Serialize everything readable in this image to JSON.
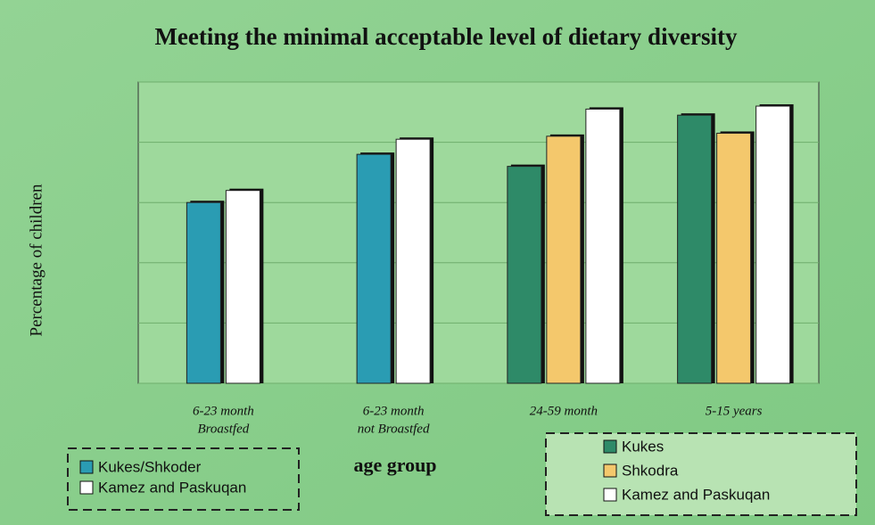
{
  "chart_data": {
    "type": "bar",
    "title": "Meeting the minimal acceptable level of dietary diversity",
    "x_label": "age group",
    "y_label": "Percentage of children",
    "categories": [
      [
        "6-23 month",
        "Broastfed"
      ],
      [
        "6-23 month",
        "not Broastfed"
      ],
      [
        "24-59 month"
      ],
      [
        "5-15 years"
      ]
    ],
    "series": [
      {
        "name": "Kukes/Shkoder",
        "color": "#2a9cb3",
        "values": [
          60,
          76,
          null,
          null
        ]
      },
      {
        "name": "Kukes",
        "color": "#2e8a68",
        "values": [
          null,
          null,
          72,
          89
        ]
      },
      {
        "name": "Shkodra",
        "color": "#f4c86c",
        "values": [
          null,
          null,
          82,
          83
        ]
      },
      {
        "name": "Kamez and Paskuqan",
        "color": "#ffffff",
        "values": [
          64,
          81,
          91,
          92
        ]
      }
    ],
    "ylim": [
      0,
      100
    ],
    "yticks": [
      0,
      20,
      40,
      60,
      80,
      100
    ],
    "grid": true
  }
}
